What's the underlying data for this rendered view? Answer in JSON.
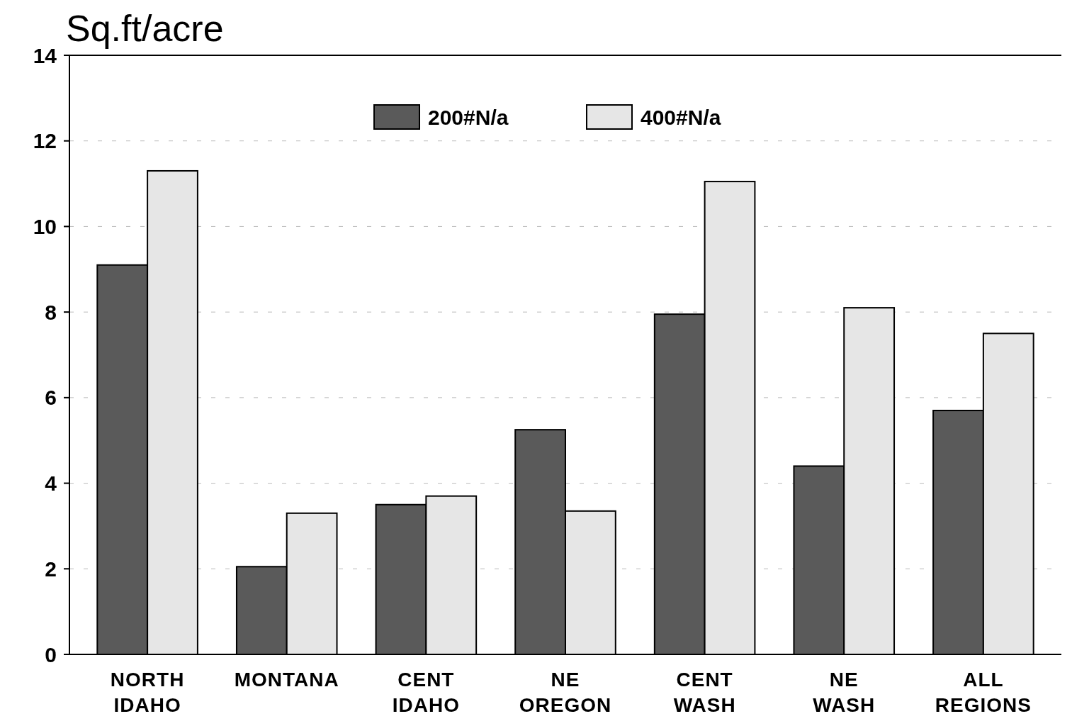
{
  "chart_data": {
    "type": "bar",
    "ylabel": "Sq.ft/acre",
    "categories": [
      "NORTH IDAHO",
      "MONTANA",
      "CENT IDAHO",
      "NE OREGON",
      "CENT WASH",
      "NE WASH",
      "ALL REGIONS"
    ],
    "series": [
      {
        "name": "200#N/a",
        "color": "#5a5a5a",
        "values": [
          9.1,
          2.05,
          3.5,
          5.25,
          7.95,
          4.4,
          5.7
        ]
      },
      {
        "name": "400#N/a",
        "color": "#e6e6e6",
        "values": [
          11.3,
          3.3,
          3.7,
          3.35,
          11.05,
          8.1,
          7.5
        ]
      }
    ],
    "ylim": [
      0,
      14
    ],
    "yticks": [
      0,
      2,
      4,
      6,
      8,
      10,
      12,
      14
    ],
    "grid": "y",
    "legend": "top"
  }
}
